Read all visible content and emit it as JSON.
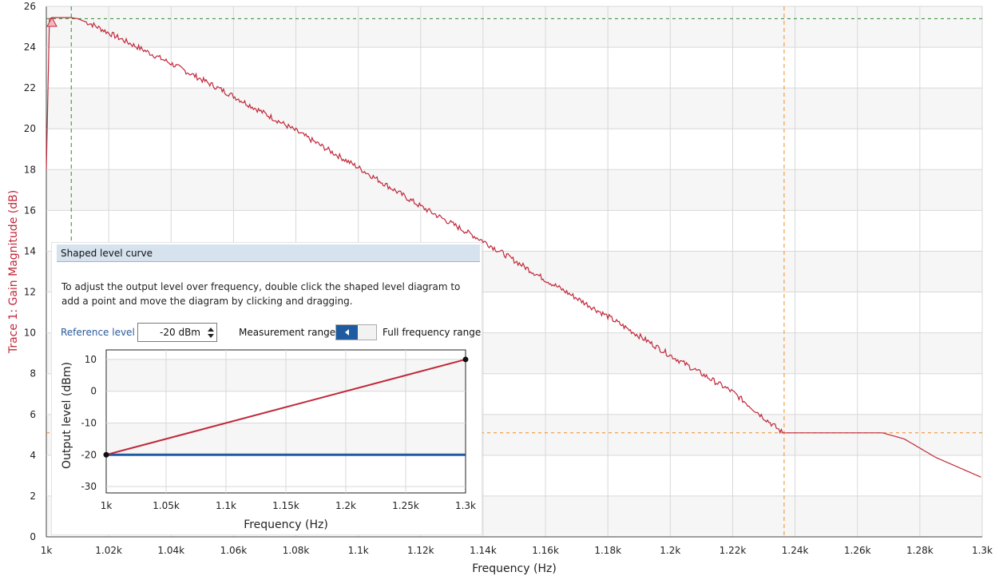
{
  "main_chart": {
    "xlabel": "Frequency (Hz)",
    "ylabel": "Trace 1: Gain Magnitude (dB)",
    "xticks": [
      "1k",
      "1.02k",
      "1.04k",
      "1.06k",
      "1.08k",
      "1.1k",
      "1.12k",
      "1.14k",
      "1.16k",
      "1.18k",
      "1.2k",
      "1.22k",
      "1.24k",
      "1.26k",
      "1.28k",
      "1.3k"
    ],
    "yticks": [
      "0",
      "2",
      "4",
      "6",
      "8",
      "10",
      "12",
      "14",
      "16",
      "18",
      "20",
      "22",
      "24",
      "26"
    ],
    "colors": {
      "trace": "#c0283a",
      "marker_green": "#2e8b2e",
      "marker_orange": "#f08a24"
    }
  },
  "panel": {
    "header": "Shaped level curve",
    "description": "To adjust the output level over frequency, double click the shaped level diagram to add a point and move the diagram by clicking and dragging.",
    "reference_label": "Reference level",
    "reference_value": "-20 dBm",
    "measurement_range_label": "Measurement range",
    "full_range_label": "Full frequency range"
  },
  "inner_chart": {
    "xlabel": "Frequency (Hz)",
    "ylabel": "Output level (dBm)",
    "xticks": [
      "1k",
      "1.05k",
      "1.1k",
      "1.15k",
      "1.2k",
      "1.25k",
      "1.3k"
    ],
    "yticks": [
      "10",
      "0",
      "-10",
      "-20",
      "-30"
    ]
  },
  "chart_data": [
    {
      "type": "line",
      "xlabel": "Frequency (Hz)",
      "ylabel": "Trace 1: Gain Magnitude (dB)",
      "xlim": [
        1000,
        1300
      ],
      "ylim": [
        0,
        26
      ],
      "grid": true,
      "series": [
        {
          "x": [
            1000,
            1001,
            1002,
            1005,
            1008,
            1010,
            1015,
            1020,
            1040,
            1060,
            1080,
            1100,
            1120,
            1140,
            1160,
            1180,
            1200,
            1220,
            1236,
            1245,
            1255,
            1265,
            1268,
            1275,
            1285,
            1300
          ],
          "y": [
            18,
            25.4,
            25.45,
            25.45,
            25.45,
            25.4,
            25.1,
            24.7,
            23.2,
            21.6,
            19.9,
            18.1,
            16.2,
            14.5,
            12.6,
            10.8,
            8.9,
            7.1,
            5.1,
            5.1,
            5.1,
            5.1,
            5.1,
            4.8,
            3.9,
            2.9
          ]
        }
      ],
      "markers": [
        {
          "kind": "vertical",
          "x": 1008,
          "color": "green"
        },
        {
          "kind": "horizontal",
          "y": 25.4,
          "color": "green"
        },
        {
          "kind": "vertical",
          "x": 1236.5,
          "color": "orange"
        },
        {
          "kind": "horizontal",
          "y": 5.1,
          "color": "orange"
        }
      ]
    },
    {
      "type": "line",
      "xlabel": "Frequency (Hz)",
      "ylabel": "Output level (dBm)",
      "xlim": [
        1000,
        1300
      ],
      "ylim": [
        -32,
        13
      ],
      "grid": true,
      "series": [
        {
          "x": [
            1000,
            1300
          ],
          "y": [
            -20,
            10
          ]
        },
        {
          "x": [
            1000,
            1300
          ],
          "y": [
            -20,
            -20
          ]
        }
      ]
    }
  ]
}
